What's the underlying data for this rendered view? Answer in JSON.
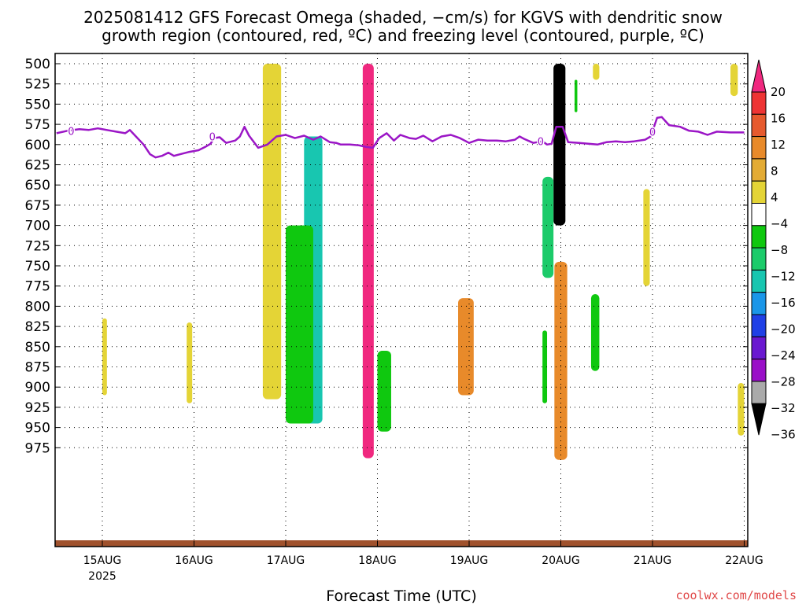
{
  "chart_data": {
    "type": "heatmap",
    "title_lines": [
      "2025081412 GFS Forecast Omega (shaded, −cm/s) for KGVS with dendritic snow",
      "growth region (contoured, red, ºC) and freezing level (contoured, purple, ºC)"
    ],
    "xlabel": "Forecast Time (UTC)",
    "credit": "coolwx.com/models",
    "x_axis": {
      "range_days": [
        14.5,
        22.0
      ],
      "ticks": [
        {
          "day": 15,
          "label": "15AUG",
          "sublabel": "2025"
        },
        {
          "day": 16,
          "label": "16AUG"
        },
        {
          "day": 17,
          "label": "17AUG"
        },
        {
          "day": 18,
          "label": "18AUG"
        },
        {
          "day": 19,
          "label": "19AUG"
        },
        {
          "day": 20,
          "label": "20AUG"
        },
        {
          "day": 21,
          "label": "21AUG"
        },
        {
          "day": 22,
          "label": "22AUG"
        }
      ]
    },
    "y_axis": {
      "scale": "pressure_hPa",
      "range": [
        500,
        1000
      ],
      "ticks": [
        500,
        525,
        550,
        575,
        600,
        625,
        650,
        675,
        700,
        725,
        750,
        775,
        800,
        825,
        850,
        875,
        900,
        925,
        950,
        975
      ]
    },
    "grid": true,
    "colorbar": {
      "labels": [
        "20",
        "16",
        "12",
        "8",
        "4",
        "−4",
        "−8",
        "−12",
        "−16",
        "−20",
        "−24",
        "−28",
        "−32",
        "−36"
      ],
      "colors_top_to_bottom": [
        "#f0287f",
        "#ee3434",
        "#e65a2e",
        "#e88a2a",
        "#e3ab34",
        "#e4d436",
        "#ffffff",
        "#0fc80f",
        "#1ccb6a",
        "#18c6b0",
        "#1a96e8",
        "#2040e6",
        "#6a18d0",
        "#9a10c8",
        "#aaaaaa",
        "#000000"
      ]
    },
    "freezing_level": {
      "color": "#9b16c6",
      "label": "0",
      "points": [
        [
          14.5,
          586
        ],
        [
          14.62,
          583
        ],
        [
          14.75,
          581
        ],
        [
          14.85,
          582
        ],
        [
          14.95,
          580
        ],
        [
          15.05,
          582
        ],
        [
          15.15,
          584
        ],
        [
          15.25,
          586
        ],
        [
          15.3,
          582
        ],
        [
          15.35,
          588
        ],
        [
          15.45,
          600
        ],
        [
          15.52,
          612
        ],
        [
          15.58,
          616
        ],
        [
          15.65,
          614
        ],
        [
          15.72,
          610
        ],
        [
          15.78,
          614
        ],
        [
          15.85,
          612
        ],
        [
          15.95,
          609
        ],
        [
          16.05,
          607
        ],
        [
          16.12,
          603
        ],
        [
          16.18,
          599
        ],
        [
          16.22,
          592
        ],
        [
          16.28,
          591
        ],
        [
          16.35,
          598
        ],
        [
          16.45,
          595
        ],
        [
          16.5,
          590
        ],
        [
          16.55,
          578
        ],
        [
          16.6,
          589
        ],
        [
          16.7,
          604
        ],
        [
          16.8,
          600
        ],
        [
          16.9,
          590
        ],
        [
          17.0,
          588
        ],
        [
          17.1,
          592
        ],
        [
          17.2,
          589
        ],
        [
          17.3,
          594
        ],
        [
          17.38,
          590
        ],
        [
          17.48,
          597
        ],
        [
          17.55,
          598
        ],
        [
          17.6,
          600
        ],
        [
          17.7,
          600
        ],
        [
          17.8,
          601
        ],
        [
          17.88,
          603
        ],
        [
          17.95,
          604
        ],
        [
          18.02,
          592
        ],
        [
          18.1,
          586
        ],
        [
          18.18,
          595
        ],
        [
          18.25,
          588
        ],
        [
          18.35,
          592
        ],
        [
          18.42,
          593
        ],
        [
          18.5,
          589
        ],
        [
          18.6,
          596
        ],
        [
          18.7,
          590
        ],
        [
          18.8,
          588
        ],
        [
          18.9,
          592
        ],
        [
          19.0,
          598
        ],
        [
          19.1,
          594
        ],
        [
          19.2,
          595
        ],
        [
          19.3,
          595
        ],
        [
          19.4,
          596
        ],
        [
          19.5,
          594
        ],
        [
          19.55,
          590
        ],
        [
          19.6,
          593
        ],
        [
          19.7,
          598
        ],
        [
          19.8,
          596
        ],
        [
          19.85,
          600
        ],
        [
          19.9,
          599
        ],
        [
          19.95,
          578
        ],
        [
          20.02,
          578
        ],
        [
          20.08,
          597
        ],
        [
          20.2,
          598
        ],
        [
          20.4,
          600
        ],
        [
          20.5,
          597
        ],
        [
          20.6,
          596
        ],
        [
          20.7,
          597
        ],
        [
          20.8,
          596
        ],
        [
          20.92,
          594
        ],
        [
          20.98,
          590
        ],
        [
          21.05,
          567
        ],
        [
          21.1,
          566
        ],
        [
          21.18,
          576
        ],
        [
          21.3,
          578
        ],
        [
          21.4,
          583
        ],
        [
          21.5,
          584
        ],
        [
          21.6,
          588
        ],
        [
          21.7,
          584
        ],
        [
          21.85,
          585
        ],
        [
          22.0,
          585
        ]
      ]
    },
    "omega_shading": [
      {
        "level": "20",
        "color": "#f0287f",
        "day_range": [
          17.84,
          17.96
        ],
        "hPa_range": [
          500,
          988
        ]
      },
      {
        "level": "20",
        "color": "#f0287f",
        "day_range": [
          19.95,
          20.05
        ],
        "hPa_range": [
          755,
          985
        ]
      },
      {
        "level": "8",
        "color": "#e88a2a",
        "day_range": [
          19.93,
          20.07
        ],
        "hPa_range": [
          745,
          990
        ]
      },
      {
        "level": "-36",
        "color": "#000000",
        "day_range": [
          19.92,
          20.05
        ],
        "hPa_range": [
          500,
          700
        ]
      },
      {
        "level": "-16",
        "color": "#1a96e8",
        "day_range": [
          17.25,
          17.35
        ],
        "hPa_range": [
          630,
          940
        ]
      },
      {
        "level": "-12",
        "color": "#18c6b0",
        "day_range": [
          17.2,
          17.4
        ],
        "hPa_range": [
          590,
          945
        ]
      },
      {
        "level": "-8",
        "color": "#0fc80f",
        "day_range": [
          18.0,
          18.15
        ],
        "hPa_range": [
          855,
          955
        ]
      },
      {
        "level": "-4",
        "color": "#0fc80f",
        "day_range": [
          17.0,
          17.3
        ],
        "hPa_range": [
          700,
          945
        ]
      },
      {
        "level": "4",
        "color": "#e4d436",
        "day_range": [
          16.75,
          16.95
        ],
        "hPa_range": [
          500,
          915
        ]
      },
      {
        "level": "8",
        "color": "#e88a2a",
        "day_range": [
          18.88,
          19.05
        ],
        "hPa_range": [
          790,
          910
        ]
      },
      {
        "level": "-8",
        "color": "#1ccb6a",
        "day_range": [
          19.8,
          19.92
        ],
        "hPa_range": [
          640,
          765
        ]
      },
      {
        "level": "-8",
        "color": "#0fc80f",
        "day_range": [
          19.8,
          19.85
        ],
        "hPa_range": [
          830,
          920
        ]
      },
      {
        "level": "4",
        "color": "#e4d436",
        "day_range": [
          15.0,
          15.05
        ],
        "hPa_range": [
          815,
          910
        ]
      },
      {
        "level": "4",
        "color": "#e4d436",
        "day_range": [
          15.92,
          15.98
        ],
        "hPa_range": [
          820,
          920
        ]
      },
      {
        "level": "4",
        "color": "#e4d436",
        "day_range": [
          21.85,
          21.93
        ],
        "hPa_range": [
          500,
          540
        ]
      },
      {
        "level": "4",
        "color": "#e4d436",
        "day_range": [
          20.9,
          20.97
        ],
        "hPa_range": [
          655,
          775
        ]
      },
      {
        "level": "4",
        "color": "#e4d436",
        "day_range": [
          21.93,
          22.0
        ],
        "hPa_range": [
          895,
          960
        ]
      },
      {
        "level": "-4",
        "color": "#0fc80f",
        "day_range": [
          20.33,
          20.42
        ],
        "hPa_range": [
          785,
          880
        ]
      },
      {
        "level": "-4",
        "color": "#0fc80f",
        "day_range": [
          20.15,
          20.18
        ],
        "hPa_range": [
          520,
          560
        ]
      },
      {
        "level": "4",
        "color": "#e4d436",
        "day_range": [
          20.35,
          20.42
        ],
        "hPa_range": [
          500,
          520
        ]
      }
    ]
  }
}
